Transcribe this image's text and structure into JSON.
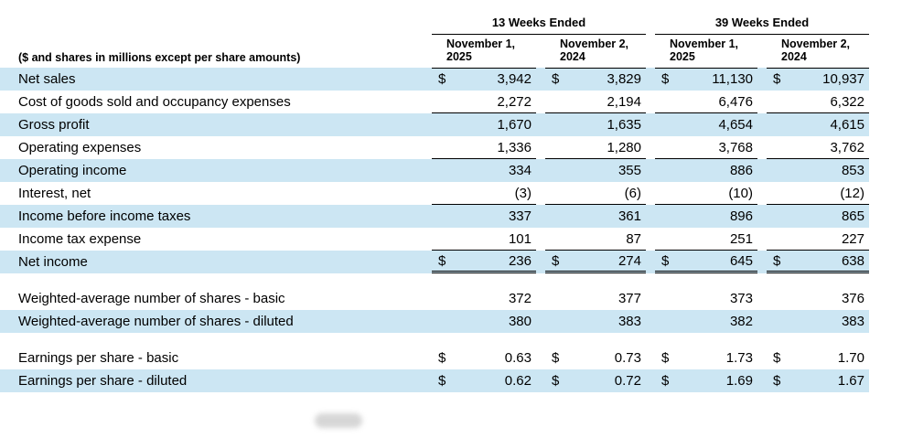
{
  "table": {
    "unit_note": "($ and shares in millions except per share amounts)",
    "groups": [
      {
        "label": "13 Weeks Ended"
      },
      {
        "label": "39 Weeks Ended"
      }
    ],
    "columns": [
      {
        "line1": "November 1,",
        "line2": "2025"
      },
      {
        "line1": "November 2,",
        "line2": "2024"
      },
      {
        "line1": "November 1,",
        "line2": "2025"
      },
      {
        "line1": "November 2,",
        "line2": "2024"
      }
    ],
    "rows": [
      {
        "label": "Net sales",
        "dollar": "$",
        "values": [
          "3,942",
          "3,829",
          "11,130",
          "10,937"
        ]
      },
      {
        "label": "Cost of goods sold and occupancy expenses",
        "values": [
          "2,272",
          "2,194",
          "6,476",
          "6,322"
        ]
      },
      {
        "label": "Gross profit",
        "values": [
          "1,670",
          "1,635",
          "4,654",
          "4,615"
        ]
      },
      {
        "label": "Operating expenses",
        "values": [
          "1,336",
          "1,280",
          "3,768",
          "3,762"
        ]
      },
      {
        "label": "Operating income",
        "values": [
          "334",
          "355",
          "886",
          "853"
        ]
      },
      {
        "label": "Interest, net",
        "values": [
          "(3)",
          "(6)",
          "(10)",
          "(12)"
        ]
      },
      {
        "label": "Income before income taxes",
        "values": [
          "337",
          "361",
          "896",
          "865"
        ]
      },
      {
        "label": "Income tax expense",
        "values": [
          "101",
          "87",
          "251",
          "227"
        ]
      },
      {
        "label": "Net income",
        "dollar": "$",
        "values": [
          "236",
          "274",
          "645",
          "638"
        ]
      },
      {
        "label": "Weighted-average number of shares - basic",
        "values": [
          "372",
          "377",
          "373",
          "376"
        ]
      },
      {
        "label": "Weighted-average number of shares - diluted",
        "values": [
          "380",
          "383",
          "382",
          "383"
        ]
      },
      {
        "label": "Earnings per share - basic",
        "dollar": "$",
        "values": [
          "0.63",
          "0.73",
          "1.73",
          "1.70"
        ]
      },
      {
        "label": "Earnings per share - diluted",
        "dollar": "$",
        "values": [
          "0.62",
          "0.72",
          "1.69",
          "1.67"
        ]
      }
    ],
    "colors": {
      "row_shade": "#cce6f3",
      "rule": "#000000"
    }
  }
}
